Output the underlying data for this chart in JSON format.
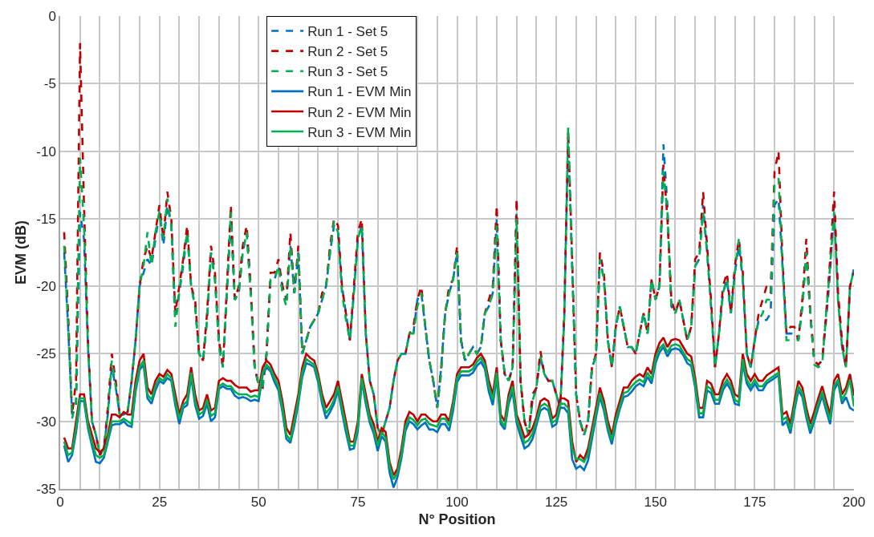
{
  "chart_data": {
    "type": "line",
    "xlabel": "N° Position",
    "ylabel": "EVM (dB)",
    "xlim": [
      0,
      200
    ],
    "ylim": [
      -35,
      0
    ],
    "xticks": [
      0,
      {
        "value": 5,
        "label": null
      },
      {
        "value": 10,
        "label": null
      },
      {
        "value": 15,
        "label": null
      },
      {
        "value": 20,
        "label": null
      },
      25,
      {
        "value": 30,
        "label": null
      },
      {
        "value": 35,
        "label": null
      },
      {
        "value": 40,
        "label": null
      },
      {
        "value": 45,
        "label": null
      },
      50,
      {
        "value": 55,
        "label": null
      },
      {
        "value": 60,
        "label": null
      },
      {
        "value": 65,
        "label": null
      },
      {
        "value": 70,
        "label": null
      },
      75,
      {
        "value": 80,
        "label": null
      },
      {
        "value": 85,
        "label": null
      },
      {
        "value": 90,
        "label": null
      },
      {
        "value": 95,
        "label": null
      },
      100,
      {
        "value": 105,
        "label": null
      },
      {
        "value": 110,
        "label": null
      },
      {
        "value": 115,
        "label": null
      },
      {
        "value": 120,
        "label": null
      },
      125,
      {
        "value": 130,
        "label": null
      },
      {
        "value": 135,
        "label": null
      },
      {
        "value": 140,
        "label": null
      },
      {
        "value": 145,
        "label": null
      },
      150,
      {
        "value": 155,
        "label": null
      },
      {
        "value": 160,
        "label": null
      },
      {
        "value": 165,
        "label": null
      },
      {
        "value": 170,
        "label": null
      },
      175,
      {
        "value": 180,
        "label": null
      },
      {
        "value": 185,
        "label": null
      },
      {
        "value": 190,
        "label": null
      },
      {
        "value": 195,
        "label": null
      },
      200
    ],
    "yticks": [
      -35,
      -30,
      -25,
      -20,
      -15,
      -10,
      -5,
      0
    ],
    "grid": true,
    "legend": "top",
    "marker": "none",
    "x": [
      1,
      2,
      3,
      4,
      5,
      6,
      7,
      8,
      9,
      10,
      11,
      12,
      13,
      14,
      15,
      16,
      17,
      18,
      19,
      20,
      21,
      22,
      23,
      24,
      25,
      26,
      27,
      28,
      29,
      30,
      31,
      32,
      33,
      34,
      35,
      36,
      37,
      38,
      39,
      40,
      41,
      42,
      43,
      44,
      45,
      46,
      47,
      48,
      49,
      50,
      51,
      52,
      53,
      54,
      55,
      56,
      57,
      58,
      59,
      60,
      61,
      62,
      63,
      64,
      65,
      66,
      67,
      68,
      69,
      70,
      71,
      72,
      73,
      74,
      75,
      76,
      77,
      78,
      79,
      80,
      81,
      82,
      83,
      84,
      85,
      86,
      87,
      88,
      89,
      90,
      91,
      92,
      93,
      94,
      95,
      96,
      97,
      98,
      99,
      100,
      101,
      102,
      103,
      104,
      105,
      106,
      107,
      108,
      109,
      110,
      111,
      112,
      113,
      114,
      115,
      116,
      117,
      118,
      119,
      120,
      121,
      122,
      123,
      124,
      125,
      126,
      127,
      128,
      129,
      130,
      131,
      132,
      133,
      134,
      135,
      136,
      137,
      138,
      139,
      140,
      141,
      142,
      143,
      144,
      145,
      146,
      147,
      148,
      149,
      150,
      151,
      152,
      153,
      154,
      155,
      156,
      157,
      158,
      159,
      160,
      161,
      162,
      163,
      164,
      165,
      166,
      167,
      168,
      169,
      170,
      171,
      172,
      173,
      174,
      175,
      176,
      177,
      178,
      179,
      180,
      181,
      182,
      183,
      184,
      185,
      186,
      187,
      188,
      189,
      190,
      191,
      192,
      193,
      194,
      195,
      196,
      197,
      198,
      199,
      200
    ],
    "series": [
      {
        "name": "Run 1 - Set 5",
        "color": "#0070c0",
        "line_style": "dashed",
        "values": [
          -17.5,
          -23,
          -29.5,
          -29,
          -14.5,
          -16.5,
          -24.5,
          -30,
          -31,
          -32.5,
          -32,
          -29.5,
          -26,
          -27.5,
          -29.5,
          -29.5,
          -29.3,
          -27,
          -24,
          -20,
          -19,
          -18,
          -18.5,
          -16.5,
          -14.5,
          -17,
          -14,
          -15.5,
          -22,
          -20.5,
          -18.5,
          -16,
          -20,
          -21.5,
          -25,
          -25.5,
          -22.5,
          -17.5,
          -19.5,
          -24,
          -26,
          -20.5,
          -15,
          -21,
          -20.5,
          -17.5,
          -16,
          -20.5,
          -26,
          -27.3,
          -27.5,
          -25,
          -19.5,
          -19.5,
          -18.5,
          -20,
          -21,
          -17,
          -20.5,
          -17.5,
          -25,
          -24,
          -23,
          -22.5,
          -22,
          -21,
          -20,
          -17.5,
          -15.5,
          -16,
          -20,
          -22,
          -24,
          -20.5,
          -16.5,
          -15.5,
          -23.5,
          -27,
          -28,
          -30.5,
          -31,
          -30,
          -29,
          -27,
          -25.5,
          -25,
          -25,
          -23.5,
          -23.5,
          -21,
          -20.5,
          -23,
          -25.5,
          -27,
          -29,
          -26,
          -22,
          -20.5,
          -19.5,
          -17.5,
          -24,
          -25.5,
          -25,
          -24.5,
          -25,
          -24.5,
          -22,
          -21.5,
          -20.5,
          -15,
          -24,
          -26.5,
          -27,
          -26,
          -14.5,
          -27,
          -30,
          -31,
          -28.5,
          -27.5,
          -25.2,
          -26.5,
          -27,
          -27,
          -28,
          -29,
          -22.5,
          -9,
          -18.5,
          -28,
          -30,
          -31,
          -30,
          -26,
          -25.2,
          -18,
          -19.5,
          -24,
          -26,
          -23,
          -21.5,
          -23,
          -24.5,
          -24.5,
          -25,
          -23.5,
          -22,
          -23.5,
          -19.5,
          -21,
          -20,
          -9.5,
          -14,
          -21.5,
          -22,
          -21,
          -22.5,
          -24,
          -23,
          -18.5,
          -18,
          -14,
          -17.5,
          -21.5,
          -26,
          -23.5,
          -20.5,
          -19.5,
          -22,
          -19,
          -17,
          -19.5,
          -25,
          -26,
          -24,
          -22.5,
          -22.5,
          -22.5,
          -22,
          -14,
          -13.5,
          -18.5,
          -23.5,
          -23.5,
          -23.5,
          -24,
          -21.5,
          -17.5,
          -22,
          -25.5,
          -25.8,
          -25.5,
          -22.5,
          -19,
          -14,
          -21,
          -24.5,
          -26,
          -20,
          -18.7
        ]
      },
      {
        "name": "Run 2 - Set 5",
        "color": "#c00000",
        "line_style": "dashed",
        "values": [
          -16,
          -22,
          -29.5,
          -27,
          -2,
          -14,
          -24,
          -30,
          -31,
          -32.5,
          -32,
          -29,
          -25,
          -27,
          -29.5,
          -29.5,
          -29.3,
          -27,
          -24,
          -20,
          -18,
          -17,
          -18,
          -16,
          -14,
          -16.5,
          -13,
          -15,
          -22,
          -20,
          -18,
          -15.5,
          -20,
          -21,
          -25,
          -25.5,
          -22,
          -17,
          -19,
          -24,
          -26,
          -20,
          -14,
          -21,
          -20,
          -17,
          -15.5,
          -20,
          -26,
          -27.3,
          -27.5,
          -25,
          -19,
          -19,
          -18,
          -20,
          -21,
          -16,
          -20.5,
          -17,
          -25,
          -24,
          -23,
          -22.5,
          -22,
          -20.5,
          -20,
          -17,
          -15,
          -15.5,
          -20,
          -22,
          -24,
          -20,
          -16,
          -15,
          -23.5,
          -27,
          -28,
          -30.5,
          -31,
          -30,
          -29,
          -27,
          -25.5,
          -25,
          -25,
          -23.5,
          -23,
          -21,
          -20,
          -23,
          -25.5,
          -27,
          -29,
          -26,
          -22,
          -20,
          -19.5,
          -17,
          -24,
          -25.5,
          -25,
          -24.5,
          -25,
          -24.5,
          -22,
          -21,
          -20,
          -14,
          -24,
          -26.5,
          -27,
          -26,
          -13.5,
          -27,
          -30,
          -31,
          -28,
          -27.5,
          -24.8,
          -26.5,
          -27,
          -27,
          -28,
          -29,
          -22,
          -8.5,
          -18,
          -28,
          -30,
          -31,
          -30,
          -26,
          -25,
          -17.5,
          -19,
          -24,
          -26,
          -23,
          -21.5,
          -23,
          -24.5,
          -24.5,
          -25,
          -23.5,
          -22,
          -23.5,
          -19.5,
          -21,
          -20,
          -11,
          -15,
          -21,
          -22,
          -21,
          -22.5,
          -24,
          -23,
          -18,
          -17.5,
          -13,
          -17,
          -21,
          -26,
          -23.5,
          -20,
          -19,
          -22,
          -18.5,
          -16.5,
          -19,
          -25,
          -26,
          -24,
          -22,
          -21,
          -20,
          -20.5,
          -11.5,
          -10,
          -18,
          -23.5,
          -23,
          -23,
          -24,
          -21,
          -16.5,
          -22,
          -25.5,
          -25.8,
          -25.5,
          -22,
          -18,
          -13,
          -20.5,
          -24,
          -26,
          -20,
          -19
        ]
      },
      {
        "name": "Run 3 - Set 5",
        "color": "#00b050",
        "line_style": "dashed",
        "values": [
          -17,
          -23,
          -29.8,
          -28.5,
          -10.5,
          -15.5,
          -24.5,
          -30,
          -31,
          -32.5,
          -32,
          -29.5,
          -25.5,
          -27.5,
          -29.5,
          -29.5,
          -29.3,
          -27,
          -24,
          -20,
          -18.5,
          -16,
          -18.5,
          -16,
          -14.5,
          -16.5,
          -13.5,
          -15.5,
          -23,
          -20.5,
          -18,
          -16,
          -20,
          -21.5,
          -25,
          -25.5,
          -22.5,
          -17.5,
          -19.5,
          -24.5,
          -26,
          -20.5,
          -14.5,
          -21,
          -20.5,
          -17.5,
          -16,
          -20.5,
          -26,
          -27.3,
          -27.5,
          -25,
          -19.5,
          -19.5,
          -18.5,
          -20.5,
          -21.5,
          -17,
          -20.5,
          -17.5,
          -25,
          -24,
          -23,
          -22.5,
          -22,
          -21,
          -20,
          -17.5,
          -15.2,
          -16,
          -20.5,
          -22.5,
          -24,
          -20.5,
          -16.5,
          -15.5,
          -23.5,
          -27,
          -28,
          -30.5,
          -31,
          -30,
          -29,
          -27,
          -25.5,
          -25,
          -25,
          -23.5,
          -23.5,
          -21.5,
          -20.5,
          -23,
          -25.5,
          -27,
          -29,
          -26.5,
          -22,
          -20.5,
          -19.5,
          -17.5,
          -24,
          -25.5,
          -25,
          -24.5,
          -25,
          -24.5,
          -22,
          -21.5,
          -20.5,
          -15.5,
          -24,
          -26.5,
          -27,
          -26,
          -15,
          -27,
          -30,
          -31,
          -28.5,
          -27.5,
          -25.2,
          -26.5,
          -27,
          -27,
          -28,
          -29,
          -22.5,
          -8.2,
          -18.5,
          -28,
          -30,
          -31,
          -30,
          -26,
          -25.2,
          -18,
          -19.5,
          -24,
          -26,
          -23,
          -21.5,
          -23,
          -24.5,
          -24.5,
          -25,
          -23.5,
          -22,
          -23.5,
          -19.5,
          -21,
          -20,
          -11.5,
          -14.5,
          -21.5,
          -22,
          -21,
          -22.5,
          -24,
          -23,
          -18.5,
          -18,
          -14.5,
          -17.5,
          -21.5,
          -26,
          -23.5,
          -20.5,
          -19.5,
          -22,
          -19,
          -16.5,
          -19.5,
          -25,
          -26,
          -24,
          -22.5,
          -22,
          -21,
          -21,
          -12.5,
          -12,
          -18.5,
          -24,
          -24,
          -24,
          -24,
          -21.5,
          -17.5,
          -22,
          -25.8,
          -26,
          -25.8,
          -22,
          -18.5,
          -14.5,
          -21,
          -24.5,
          -26,
          -20,
          -18.8
        ]
      },
      {
        "name": "Run 1 - EVM Min",
        "color": "#0070c0",
        "line_style": "solid",
        "values": [
          -31.8,
          -33,
          -32.5,
          -30.8,
          -28.5,
          -28.5,
          -30.5,
          -31.8,
          -33,
          -33.1,
          -32.7,
          -31.5,
          -30.3,
          -30.2,
          -30.2,
          -30,
          -30.3,
          -30.4,
          -27.8,
          -26.2,
          -25.8,
          -28.3,
          -28.7,
          -27.7,
          -27,
          -27.2,
          -26.8,
          -27,
          -28.8,
          -30.2,
          -29,
          -28.8,
          -26.7,
          -28.8,
          -29.8,
          -29.6,
          -28.7,
          -30,
          -29.7,
          -27.6,
          -27.4,
          -27.6,
          -27.6,
          -28.1,
          -28.3,
          -28.2,
          -28.3,
          -28.5,
          -28.4,
          -28.5,
          -26.6,
          -26,
          -26.3,
          -27.1,
          -27.7,
          -29.3,
          -31.3,
          -31.6,
          -30.3,
          -28.7,
          -26.7,
          -25.7,
          -25.8,
          -26,
          -27.1,
          -28.7,
          -29.8,
          -29.3,
          -28.7,
          -27.7,
          -29.3,
          -30.8,
          -32.1,
          -32,
          -30.7,
          -27,
          -28.7,
          -30.1,
          -30.9,
          -32.2,
          -31.1,
          -31.5,
          -33.8,
          -34.9,
          -34.1,
          -32.7,
          -30.7,
          -30,
          -30.2,
          -30.6,
          -30.3,
          -30.1,
          -30.6,
          -30.6,
          -30.8,
          -30.2,
          -30.2,
          -30.7,
          -29.2,
          -27.1,
          -26.6,
          -26.6,
          -26.6,
          -26.4,
          -25.9,
          -25.6,
          -26.1,
          -27.8,
          -28.8,
          -26.7,
          -30.2,
          -30.6,
          -28.7,
          -27.8,
          -30.1,
          -31.1,
          -32,
          -31.8,
          -31.3,
          -30.3,
          -29.2,
          -29,
          -29.2,
          -30.4,
          -30.2,
          -29,
          -29,
          -29.4,
          -32.8,
          -33.5,
          -33.3,
          -33.6,
          -32.9,
          -31.3,
          -29.7,
          -28.2,
          -29.2,
          -30.7,
          -31.7,
          -30.2,
          -29.1,
          -28.2,
          -28.1,
          -27.8,
          -27.4,
          -27.2,
          -27.4,
          -26.7,
          -27.2,
          -25.7,
          -24.9,
          -24.5,
          -25.2,
          -24.7,
          -24.6,
          -24.7,
          -25.1,
          -25.7,
          -25.9,
          -27.5,
          -29.7,
          -29.7,
          -27.7,
          -27.9,
          -28.7,
          -28.7,
          -27.7,
          -27.2,
          -27.7,
          -28.7,
          -28.8,
          -25.7,
          -27.2,
          -27.7,
          -27.2,
          -27.7,
          -27.7,
          -27.2,
          -27,
          -26.8,
          -26.6,
          -30.3,
          -30,
          -30.9,
          -29.2,
          -27.7,
          -28.2,
          -29.7,
          -30.9,
          -30,
          -29,
          -28.1,
          -29.2,
          -30.2,
          -27.7,
          -27.1,
          -28.7,
          -28.2,
          -29,
          -29.2
        ]
      },
      {
        "name": "Run 2 - EVM Min",
        "color": "#c00000",
        "line_style": "solid",
        "values": [
          -31.2,
          -32,
          -32,
          -30,
          -28,
          -28,
          -30,
          -31,
          -32,
          -32.3,
          -32,
          -31,
          -29.5,
          -29.5,
          -29.7,
          -29.3,
          -29.5,
          -29.5,
          -27,
          -25.5,
          -25,
          -27.5,
          -28,
          -27,
          -26.5,
          -26.7,
          -26.2,
          -26.5,
          -28,
          -29.5,
          -28.5,
          -28,
          -26,
          -28,
          -29.2,
          -29,
          -28,
          -29.2,
          -29,
          -27,
          -26.8,
          -27,
          -27,
          -27.3,
          -27.5,
          -27.5,
          -27.5,
          -27.8,
          -27.7,
          -27.7,
          -26,
          -25.5,
          -25.8,
          -26.5,
          -27,
          -28.5,
          -30.5,
          -31,
          -29.5,
          -28,
          -26,
          -25,
          -25.3,
          -25.5,
          -26.5,
          -28,
          -29,
          -28.5,
          -28,
          -27,
          -28.5,
          -30,
          -31.5,
          -31.5,
          -30,
          -26.5,
          -28,
          -29.5,
          -30.2,
          -31.5,
          -30.5,
          -30.8,
          -33,
          -34,
          -33.5,
          -32,
          -30,
          -29.3,
          -29.5,
          -30,
          -29.5,
          -29.5,
          -29.8,
          -30,
          -30,
          -29.5,
          -29.5,
          -30,
          -28.5,
          -26.5,
          -26,
          -26,
          -26,
          -25.8,
          -25.3,
          -25,
          -25.5,
          -27,
          -28,
          -26,
          -29.5,
          -30,
          -28,
          -27,
          -29.5,
          -30.3,
          -31.2,
          -31,
          -30.5,
          -29.7,
          -28.5,
          -28.3,
          -28.5,
          -29.8,
          -29.5,
          -28.3,
          -28.3,
          -28.5,
          -31.5,
          -33,
          -32.5,
          -32.8,
          -32,
          -30.5,
          -29,
          -27.5,
          -28.5,
          -30,
          -31,
          -29.5,
          -28.5,
          -27.5,
          -27.5,
          -27,
          -26.7,
          -26.5,
          -26.7,
          -26,
          -26.5,
          -25,
          -24.2,
          -23.8,
          -24.5,
          -24,
          -23.9,
          -24,
          -24.5,
          -25,
          -25.2,
          -26.8,
          -29,
          -29,
          -27,
          -27.2,
          -28,
          -28,
          -27,
          -26.5,
          -27,
          -28,
          -28.2,
          -25,
          -26.5,
          -27,
          -26.5,
          -27,
          -27,
          -26.6,
          -26.4,
          -26.2,
          -26,
          -29.5,
          -29.3,
          -30.2,
          -28.5,
          -27,
          -27.5,
          -29,
          -30.2,
          -29.3,
          -28.3,
          -27.4,
          -28.5,
          -29.5,
          -27,
          -26.5,
          -28,
          -27.5,
          -26.5,
          -28.1
        ]
      },
      {
        "name": "Run 3 - EVM Min",
        "color": "#00b050",
        "line_style": "solid",
        "values": [
          -31.5,
          -32.5,
          -32.3,
          -30.5,
          -28.3,
          -28.3,
          -30.3,
          -31.5,
          -32.5,
          -32.7,
          -32.5,
          -31.3,
          -30,
          -30,
          -30,
          -29.8,
          -30,
          -30.2,
          -27.5,
          -26,
          -25.5,
          -28,
          -28.4,
          -27.4,
          -26.8,
          -27,
          -26.5,
          -26.8,
          -28.5,
          -29.8,
          -28.8,
          -28.5,
          -26.4,
          -28.5,
          -29.5,
          -29.3,
          -28.4,
          -29.6,
          -29.4,
          -27.4,
          -27.2,
          -27.4,
          -27.4,
          -27.8,
          -28,
          -28,
          -28,
          -28.2,
          -28.1,
          -28.2,
          -26.4,
          -25.8,
          -26.1,
          -26.8,
          -27.4,
          -29,
          -31,
          -31.4,
          -30,
          -28.4,
          -26.4,
          -25.4,
          -25.6,
          -25.8,
          -26.8,
          -28.4,
          -29.4,
          -29,
          -28.4,
          -27.4,
          -29,
          -30.4,
          -31.8,
          -31.8,
          -30.4,
          -26.8,
          -28.4,
          -29.8,
          -30.6,
          -31.8,
          -30.8,
          -31.2,
          -33.3,
          -34.3,
          -33.8,
          -32.4,
          -30.4,
          -29.7,
          -29.9,
          -30.3,
          -29.9,
          -29.8,
          -30.2,
          -30.3,
          -30.4,
          -29.8,
          -29.8,
          -30.3,
          -28.8,
          -26.8,
          -26.3,
          -26.3,
          -26.3,
          -26.1,
          -25.6,
          -25.3,
          -25.8,
          -27.4,
          -28.4,
          -26.4,
          -29.9,
          -30.4,
          -28.4,
          -27.4,
          -29.8,
          -30.7,
          -31.6,
          -31.4,
          -30.9,
          -30,
          -28.9,
          -28.7,
          -28.9,
          -30.1,
          -29.9,
          -28.7,
          -28.7,
          -29,
          -32,
          -32.8,
          -32.8,
          -33,
          -32.4,
          -30.9,
          -29.4,
          -27.9,
          -28.9,
          -30.4,
          -31.4,
          -29.9,
          -28.9,
          -27.9,
          -27.8,
          -27.4,
          -27.1,
          -26.9,
          -27.1,
          -26.4,
          -26.9,
          -25.4,
          -24.6,
          -24.3,
          -24.9,
          -24.4,
          -24.3,
          -24.4,
          -24.9,
          -25.4,
          -25.6,
          -27.2,
          -29.4,
          -29.4,
          -27.4,
          -27.6,
          -28.4,
          -28.4,
          -27.4,
          -26.9,
          -27.4,
          -28.4,
          -28.6,
          -25.4,
          -26.9,
          -27.4,
          -26.9,
          -27.4,
          -27.4,
          -27,
          -26.8,
          -26.6,
          -26.4,
          -29.9,
          -29.7,
          -30.6,
          -28.9,
          -27.4,
          -27.9,
          -29.4,
          -30.6,
          -29.7,
          -28.7,
          -27.8,
          -28.9,
          -29.9,
          -27.4,
          -26.9,
          -28.4,
          -27.9,
          -26.9,
          -28.9
        ]
      }
    ]
  }
}
